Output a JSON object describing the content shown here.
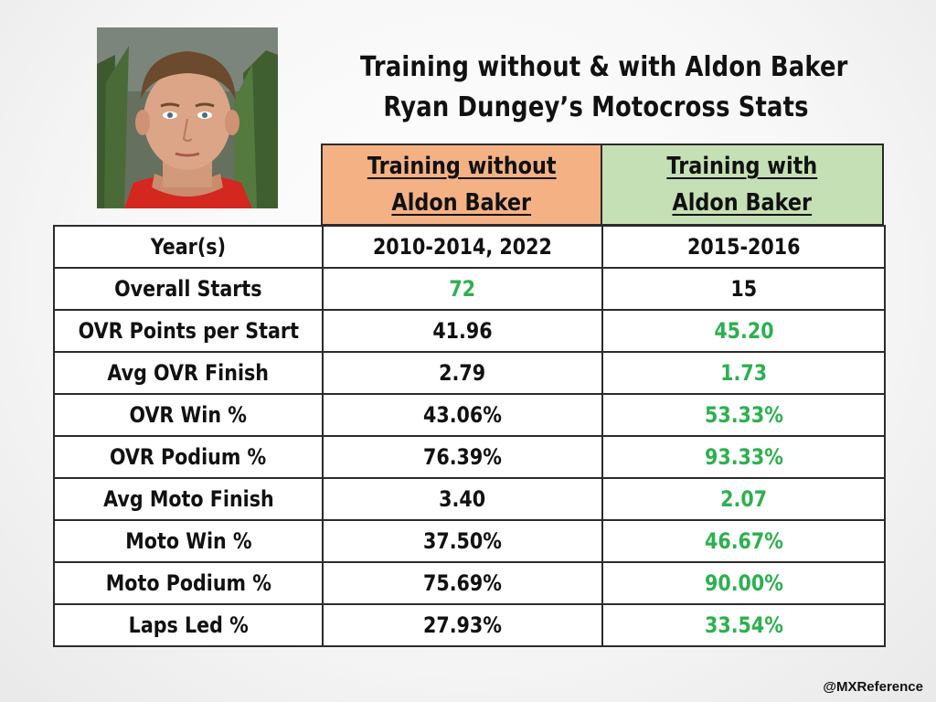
{
  "title": {
    "line1": "Training without & with Aldon Baker",
    "line2": "Ryan Dungey’s Motocross Stats"
  },
  "photo": {
    "subject": "rider-portrait"
  },
  "credit": "@MXReference",
  "colors": {
    "without_header_bg": "#f4b183",
    "with_header_bg": "#c5e0b4",
    "better_value": "#2eb04f"
  },
  "chart_data": {
    "type": "table",
    "columns": [
      {
        "line1": "Training without",
        "line2": "Aldon Baker"
      },
      {
        "line1": "Training with",
        "line2": "Aldon Baker"
      }
    ],
    "rows": [
      {
        "label": "Year(s)",
        "values": [
          "2010-2014, 2022",
          "2015-2016"
        ],
        "highlight": [
          false,
          false
        ]
      },
      {
        "label": "Overall Starts",
        "values": [
          "72",
          "15"
        ],
        "highlight": [
          true,
          false
        ]
      },
      {
        "label": "OVR Points per Start",
        "values": [
          "41.96",
          "45.20"
        ],
        "highlight": [
          false,
          true
        ]
      },
      {
        "label": "Avg OVR Finish",
        "values": [
          "2.79",
          "1.73"
        ],
        "highlight": [
          false,
          true
        ]
      },
      {
        "label": "OVR Win %",
        "values": [
          "43.06%",
          "53.33%"
        ],
        "highlight": [
          false,
          true
        ]
      },
      {
        "label": "OVR Podium %",
        "values": [
          "76.39%",
          "93.33%"
        ],
        "highlight": [
          false,
          true
        ]
      },
      {
        "label": "Avg Moto Finish",
        "values": [
          "3.40",
          "2.07"
        ],
        "highlight": [
          false,
          true
        ]
      },
      {
        "label": "Moto Win %",
        "values": [
          "37.50%",
          "46.67%"
        ],
        "highlight": [
          false,
          true
        ]
      },
      {
        "label": "Moto Podium %",
        "values": [
          "75.69%",
          "90.00%"
        ],
        "highlight": [
          false,
          true
        ]
      },
      {
        "label": "Laps Led %",
        "values": [
          "27.93%",
          "33.54%"
        ],
        "highlight": [
          false,
          true
        ]
      }
    ]
  }
}
